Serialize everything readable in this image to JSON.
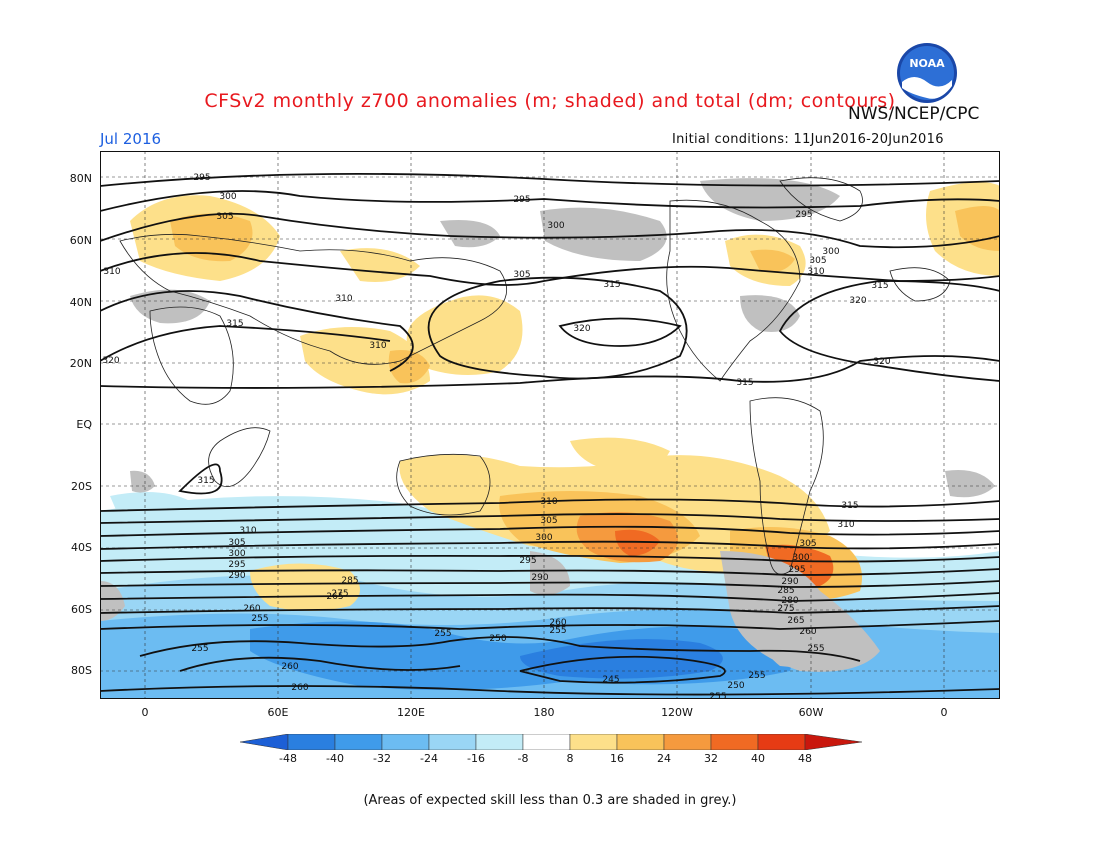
{
  "title": "CFSv2 monthly z700 anomalies (m; shaded) and total (dm; contours)",
  "agency": "NWS/NCEP/CPC",
  "logo_text": "NOAA",
  "month": "Jul 2016",
  "initial_conditions": "Initial conditions: 11Jun2016-20Jun2016",
  "footnote": "(Areas of expected skill less than 0.3 are shaded in grey.)",
  "lat_labels": [
    "80N",
    "60N",
    "40N",
    "20N",
    "EQ",
    "20S",
    "40S",
    "60S",
    "80S"
  ],
  "lon_labels": [
    "0",
    "60E",
    "120E",
    "180",
    "120W",
    "60W",
    "0"
  ],
  "colorbar": {
    "ticks": [
      "-48",
      "-40",
      "-32",
      "-24",
      "-16",
      "-8",
      "8",
      "16",
      "24",
      "32",
      "40",
      "48"
    ],
    "colors": [
      "#1c5fd6",
      "#2a7fe0",
      "#3f9bea",
      "#6cbcf2",
      "#9ad6f5",
      "#c3ecf7",
      "#ffffff",
      "#fde08a",
      "#f9c35a",
      "#f59a3e",
      "#f06a23",
      "#e63b14",
      "#c9170d"
    ]
  },
  "contour_labels": {
    "c295a": "295",
    "c300a": "300",
    "c305a": "305",
    "c310a": "310",
    "c315a": "315",
    "c320a": "320",
    "c295b": "295",
    "c300b": "300",
    "c305b": "305",
    "c310b": "310",
    "c315b": "315",
    "c320b": "320",
    "c315c": "315",
    "c320c": "320",
    "c310c": "310",
    "c315d": "315",
    "c310d": "310",
    "c305c": "305",
    "c300c": "300",
    "c290a": "290",
    "c285a": "285",
    "c275a": "275",
    "c265a": "265",
    "c260a": "260",
    "c255a": "255",
    "c250a": "250",
    "c245a": "245",
    "c260b": "260",
    "c255b": "255",
    "c260c": "260",
    "c295c": "295",
    "c300d": "300",
    "c305d": "305",
    "c310e": "310",
    "c315e": "315",
    "c290b": "290",
    "c285b": "285",
    "c280a": "280",
    "c275b": "275",
    "c265b": "265",
    "c260d": "260",
    "c255c": "255",
    "c250b": "250",
    "c255d": "255",
    "c305e": "305",
    "c300e": "300",
    "c310f": "310"
  }
}
